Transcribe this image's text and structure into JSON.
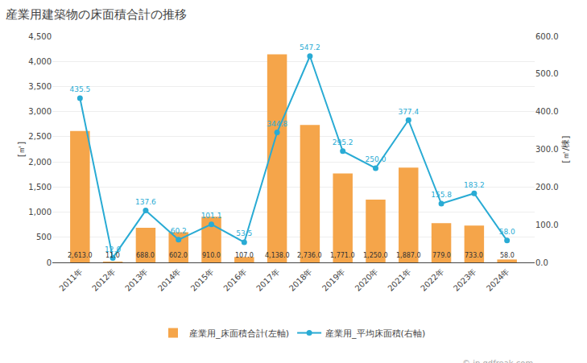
{
  "chart_data": {
    "type": "bar",
    "title": "産業用建築物の床面積合計の推移",
    "categories": [
      "2011年",
      "2012年",
      "2013年",
      "2014年",
      "2015年",
      "2016年",
      "2017年",
      "2018年",
      "2019年",
      "2020年",
      "2021年",
      "2022年",
      "2023年",
      "2024年"
    ],
    "series": [
      {
        "name": "産業用_床面積合計(左軸)",
        "type": "bar",
        "color": "#F5A54A",
        "values": [
          2613.0,
          11.0,
          688.0,
          602.0,
          910.0,
          107.0,
          4138.0,
          2736.0,
          1771.0,
          1250.0,
          1887.0,
          779.0,
          733.0,
          58.0
        ],
        "value_labels": [
          "2,613.0",
          "11.0",
          "688.0",
          "602.0",
          "910.0",
          "107.0",
          "4,138.0",
          "2,736.0",
          "1,771.0",
          "1,250.0",
          "1,887.0",
          "779.0",
          "733.0",
          "58.0"
        ]
      },
      {
        "name": "産業用_平均床面積(右軸)",
        "type": "line",
        "axis": "y2",
        "color": "#29ABD4",
        "marker": "circle",
        "values": [
          435.5,
          12.0,
          137.6,
          60.2,
          101.1,
          53.5,
          344.8,
          547.2,
          295.2,
          250.0,
          377.4,
          155.8,
          183.2,
          58.0
        ],
        "value_labels": [
          "435.5",
          "12.0",
          "137.6",
          "60.2",
          "101.1",
          "53.5",
          "344.8",
          "547.2",
          "295.2",
          "250.0",
          "377.4",
          "155.8",
          "183.2",
          "58.0"
        ]
      }
    ],
    "ylabel": "[㎡]",
    "y2label": "[㎡/棟]",
    "ylim": [
      0,
      4500
    ],
    "yticks": [
      0,
      500,
      {
        "value": 1000,
        "label": "1,000"
      },
      {
        "value": 1500,
        "label": "1,500"
      },
      {
        "value": 2000,
        "label": "2,000"
      },
      {
        "value": 2500,
        "label": "2,500"
      },
      {
        "value": 3000,
        "label": "3,000"
      },
      {
        "value": 3500,
        "label": "3,500"
      },
      {
        "value": 4000,
        "label": "4,000"
      },
      {
        "value": 4500,
        "label": "4,500"
      }
    ],
    "y2lim": [
      0,
      600
    ],
    "y2ticks": [
      {
        "value": 0,
        "label": "0.0"
      },
      {
        "value": 100,
        "label": "100.0"
      },
      {
        "value": 200,
        "label": "200.0"
      },
      {
        "value": 300,
        "label": "300.0"
      },
      {
        "value": 400,
        "label": "400.0"
      },
      {
        "value": 500,
        "label": "500.0"
      },
      {
        "value": 600,
        "label": "600.0"
      }
    ],
    "grid": true,
    "legend": "bottom",
    "data_labels": true,
    "annotations": [
      "© jp.gdfreak.com"
    ]
  }
}
